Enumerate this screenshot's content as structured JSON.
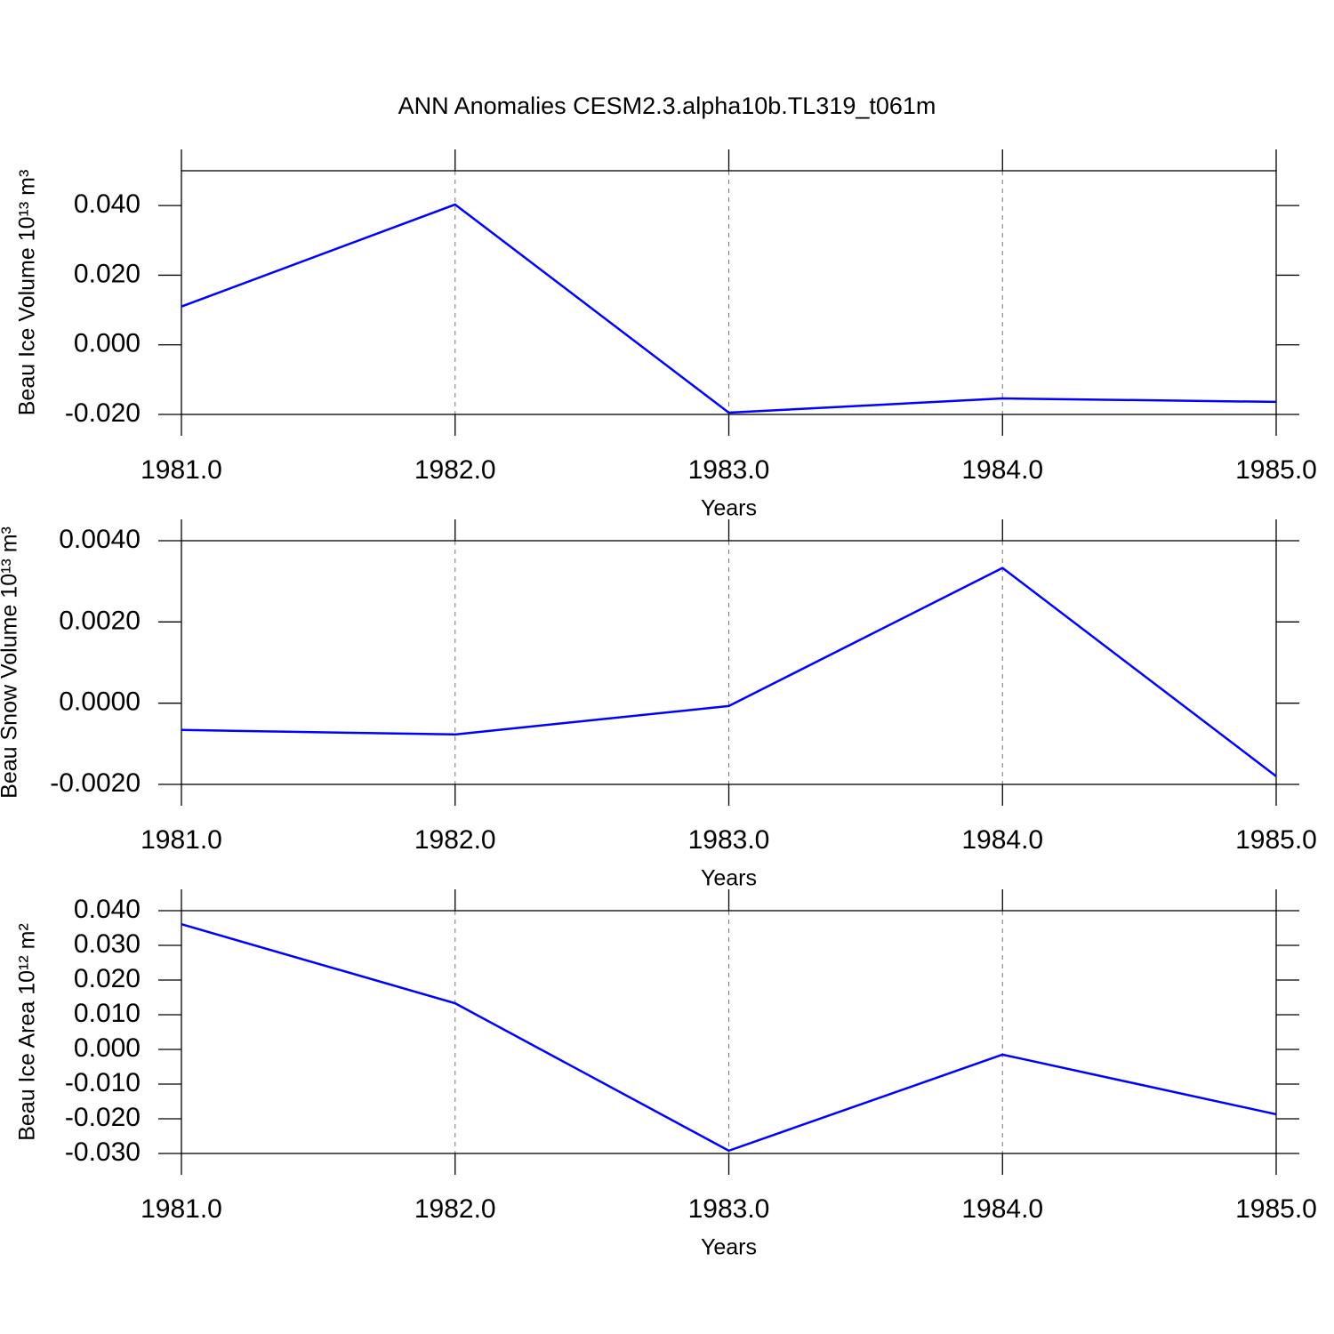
{
  "chart_data": [
    {
      "type": "line",
      "title": "ANN Anomalies CESM2.3.alpha10b.TL319_t061m",
      "x": [
        1981,
        1982,
        1983,
        1984,
        1985
      ],
      "series": [
        {
          "color": "#0000ff",
          "values": [
            0.011,
            0.0403,
            -0.0195,
            -0.0154,
            -0.0164
          ]
        }
      ],
      "xlabel": "Years",
      "ylabel": "Beau Ice Volume 10¹³ m³",
      "xlim": [
        1981,
        1985
      ],
      "ylim": [
        -0.02,
        0.05
      ],
      "xticks": [
        {
          "value": 1981,
          "label": "1981.0"
        },
        {
          "value": 1982,
          "label": "1982.0"
        },
        {
          "value": 1983,
          "label": "1983.0"
        },
        {
          "value": 1984,
          "label": "1984.0"
        },
        {
          "value": 1985,
          "label": "1985.0"
        }
      ],
      "yticks": [
        {
          "value": -0.02,
          "label": "-0.020"
        },
        {
          "value": 0,
          "label": "0.000"
        },
        {
          "value": 0.02,
          "label": "0.020"
        },
        {
          "value": 0.04,
          "label": "0.040"
        }
      ],
      "grid": true
    },
    {
      "type": "line",
      "x": [
        1981,
        1982,
        1983,
        1984,
        1985
      ],
      "series": [
        {
          "color": "#0000ff",
          "values": [
            -0.00066,
            -0.00077,
            -7e-05,
            0.00333,
            -0.0018
          ]
        }
      ],
      "xlabel": "Years",
      "ylabel": "Beau Snow Volume 10¹³ m³",
      "xlim": [
        1981,
        1985
      ],
      "ylim": [
        -0.002,
        0.004
      ],
      "xticks": [
        {
          "value": 1981,
          "label": "1981.0"
        },
        {
          "value": 1982,
          "label": "1982.0"
        },
        {
          "value": 1983,
          "label": "1983.0"
        },
        {
          "value": 1984,
          "label": "1984.0"
        },
        {
          "value": 1985,
          "label": "1985.0"
        }
      ],
      "yticks": [
        {
          "value": -0.002,
          "label": "-0.0020"
        },
        {
          "value": 0,
          "label": "0.0000"
        },
        {
          "value": 0.002,
          "label": "0.0020"
        },
        {
          "value": 0.004,
          "label": "0.0040"
        }
      ],
      "grid": true
    },
    {
      "type": "line",
      "x": [
        1981,
        1982,
        1983,
        1984,
        1985
      ],
      "series": [
        {
          "color": "#0000ff",
          "values": [
            0.0361,
            0.0133,
            -0.0292,
            -0.0015,
            -0.0187
          ]
        }
      ],
      "xlabel": "Years",
      "ylabel": "Beau Ice Area 10¹² m²",
      "xlim": [
        1981,
        1985
      ],
      "ylim": [
        -0.03,
        0.04
      ],
      "xticks": [
        {
          "value": 1981,
          "label": "1981.0"
        },
        {
          "value": 1982,
          "label": "1982.0"
        },
        {
          "value": 1983,
          "label": "1983.0"
        },
        {
          "value": 1984,
          "label": "1984.0"
        },
        {
          "value": 1985,
          "label": "1985.0"
        }
      ],
      "yticks": [
        {
          "value": -0.03,
          "label": "-0.030"
        },
        {
          "value": -0.02,
          "label": "-0.020"
        },
        {
          "value": -0.01,
          "label": "-0.010"
        },
        {
          "value": 0,
          "label": "0.000"
        },
        {
          "value": 0.01,
          "label": "0.010"
        },
        {
          "value": 0.02,
          "label": "0.020"
        },
        {
          "value": 0.03,
          "label": "0.030"
        },
        {
          "value": 0.04,
          "label": "0.040"
        }
      ],
      "grid": true
    }
  ]
}
